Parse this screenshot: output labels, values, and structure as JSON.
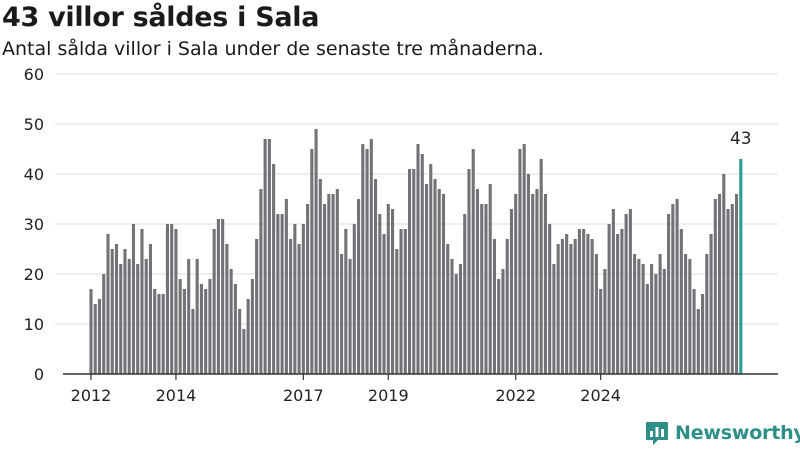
{
  "title": "43 villor såldes i Sala",
  "subtitle": "Antal sålda villor i Sala under de senaste tre månaderna.",
  "brand": {
    "name": "Newsworthy",
    "color": "#2e8f88",
    "icon": "newsworthy-logo-icon"
  },
  "colors": {
    "bar": "#737277",
    "highlight": "#2a9d93",
    "grid": "#dddddd",
    "axis": "#333333"
  },
  "chart_data": {
    "type": "bar",
    "title": "43 villor såldes i Sala",
    "subtitle": "Antal sålda villor i Sala under de senaste tre månaderna.",
    "xlabel": "",
    "ylabel": "",
    "ylim": [
      0,
      60
    ],
    "yticks": [
      0,
      10,
      20,
      30,
      40,
      50,
      60
    ],
    "xtick_labels": [
      "2012",
      "2014",
      "2017",
      "2019",
      "2022",
      "2024"
    ],
    "xtick_index": [
      0,
      20,
      50,
      70,
      100,
      120
    ],
    "grid": true,
    "highlight_label": "43",
    "values": [
      17,
      14,
      15,
      20,
      28,
      25,
      26,
      22,
      25,
      23,
      30,
      22,
      29,
      23,
      26,
      17,
      16,
      16,
      30,
      30,
      29,
      19,
      17,
      23,
      13,
      23,
      18,
      17,
      19,
      29,
      31,
      31,
      26,
      21,
      18,
      13,
      9,
      15,
      19,
      27,
      37,
      47,
      47,
      42,
      32,
      32,
      35,
      27,
      30,
      26,
      30,
      34,
      45,
      49,
      39,
      34,
      36,
      36,
      37,
      24,
      29,
      23,
      30,
      35,
      46,
      45,
      47,
      39,
      32,
      28,
      34,
      33,
      25,
      29,
      29,
      41,
      41,
      46,
      44,
      38,
      42,
      39,
      37,
      36,
      26,
      23,
      20,
      22,
      32,
      41,
      45,
      37,
      34,
      34,
      38,
      27,
      19,
      21,
      27,
      33,
      36,
      45,
      46,
      40,
      36,
      37,
      43,
      36,
      30,
      22,
      26,
      27,
      28,
      26,
      27,
      29,
      29,
      28,
      27,
      24,
      17,
      21,
      30,
      33,
      28,
      29,
      32,
      33,
      24,
      23,
      22,
      18,
      22,
      20,
      24,
      21,
      32,
      34,
      35,
      29,
      24,
      23,
      17,
      13,
      16,
      24,
      28,
      35,
      36,
      40,
      33,
      34,
      36,
      43
    ]
  }
}
